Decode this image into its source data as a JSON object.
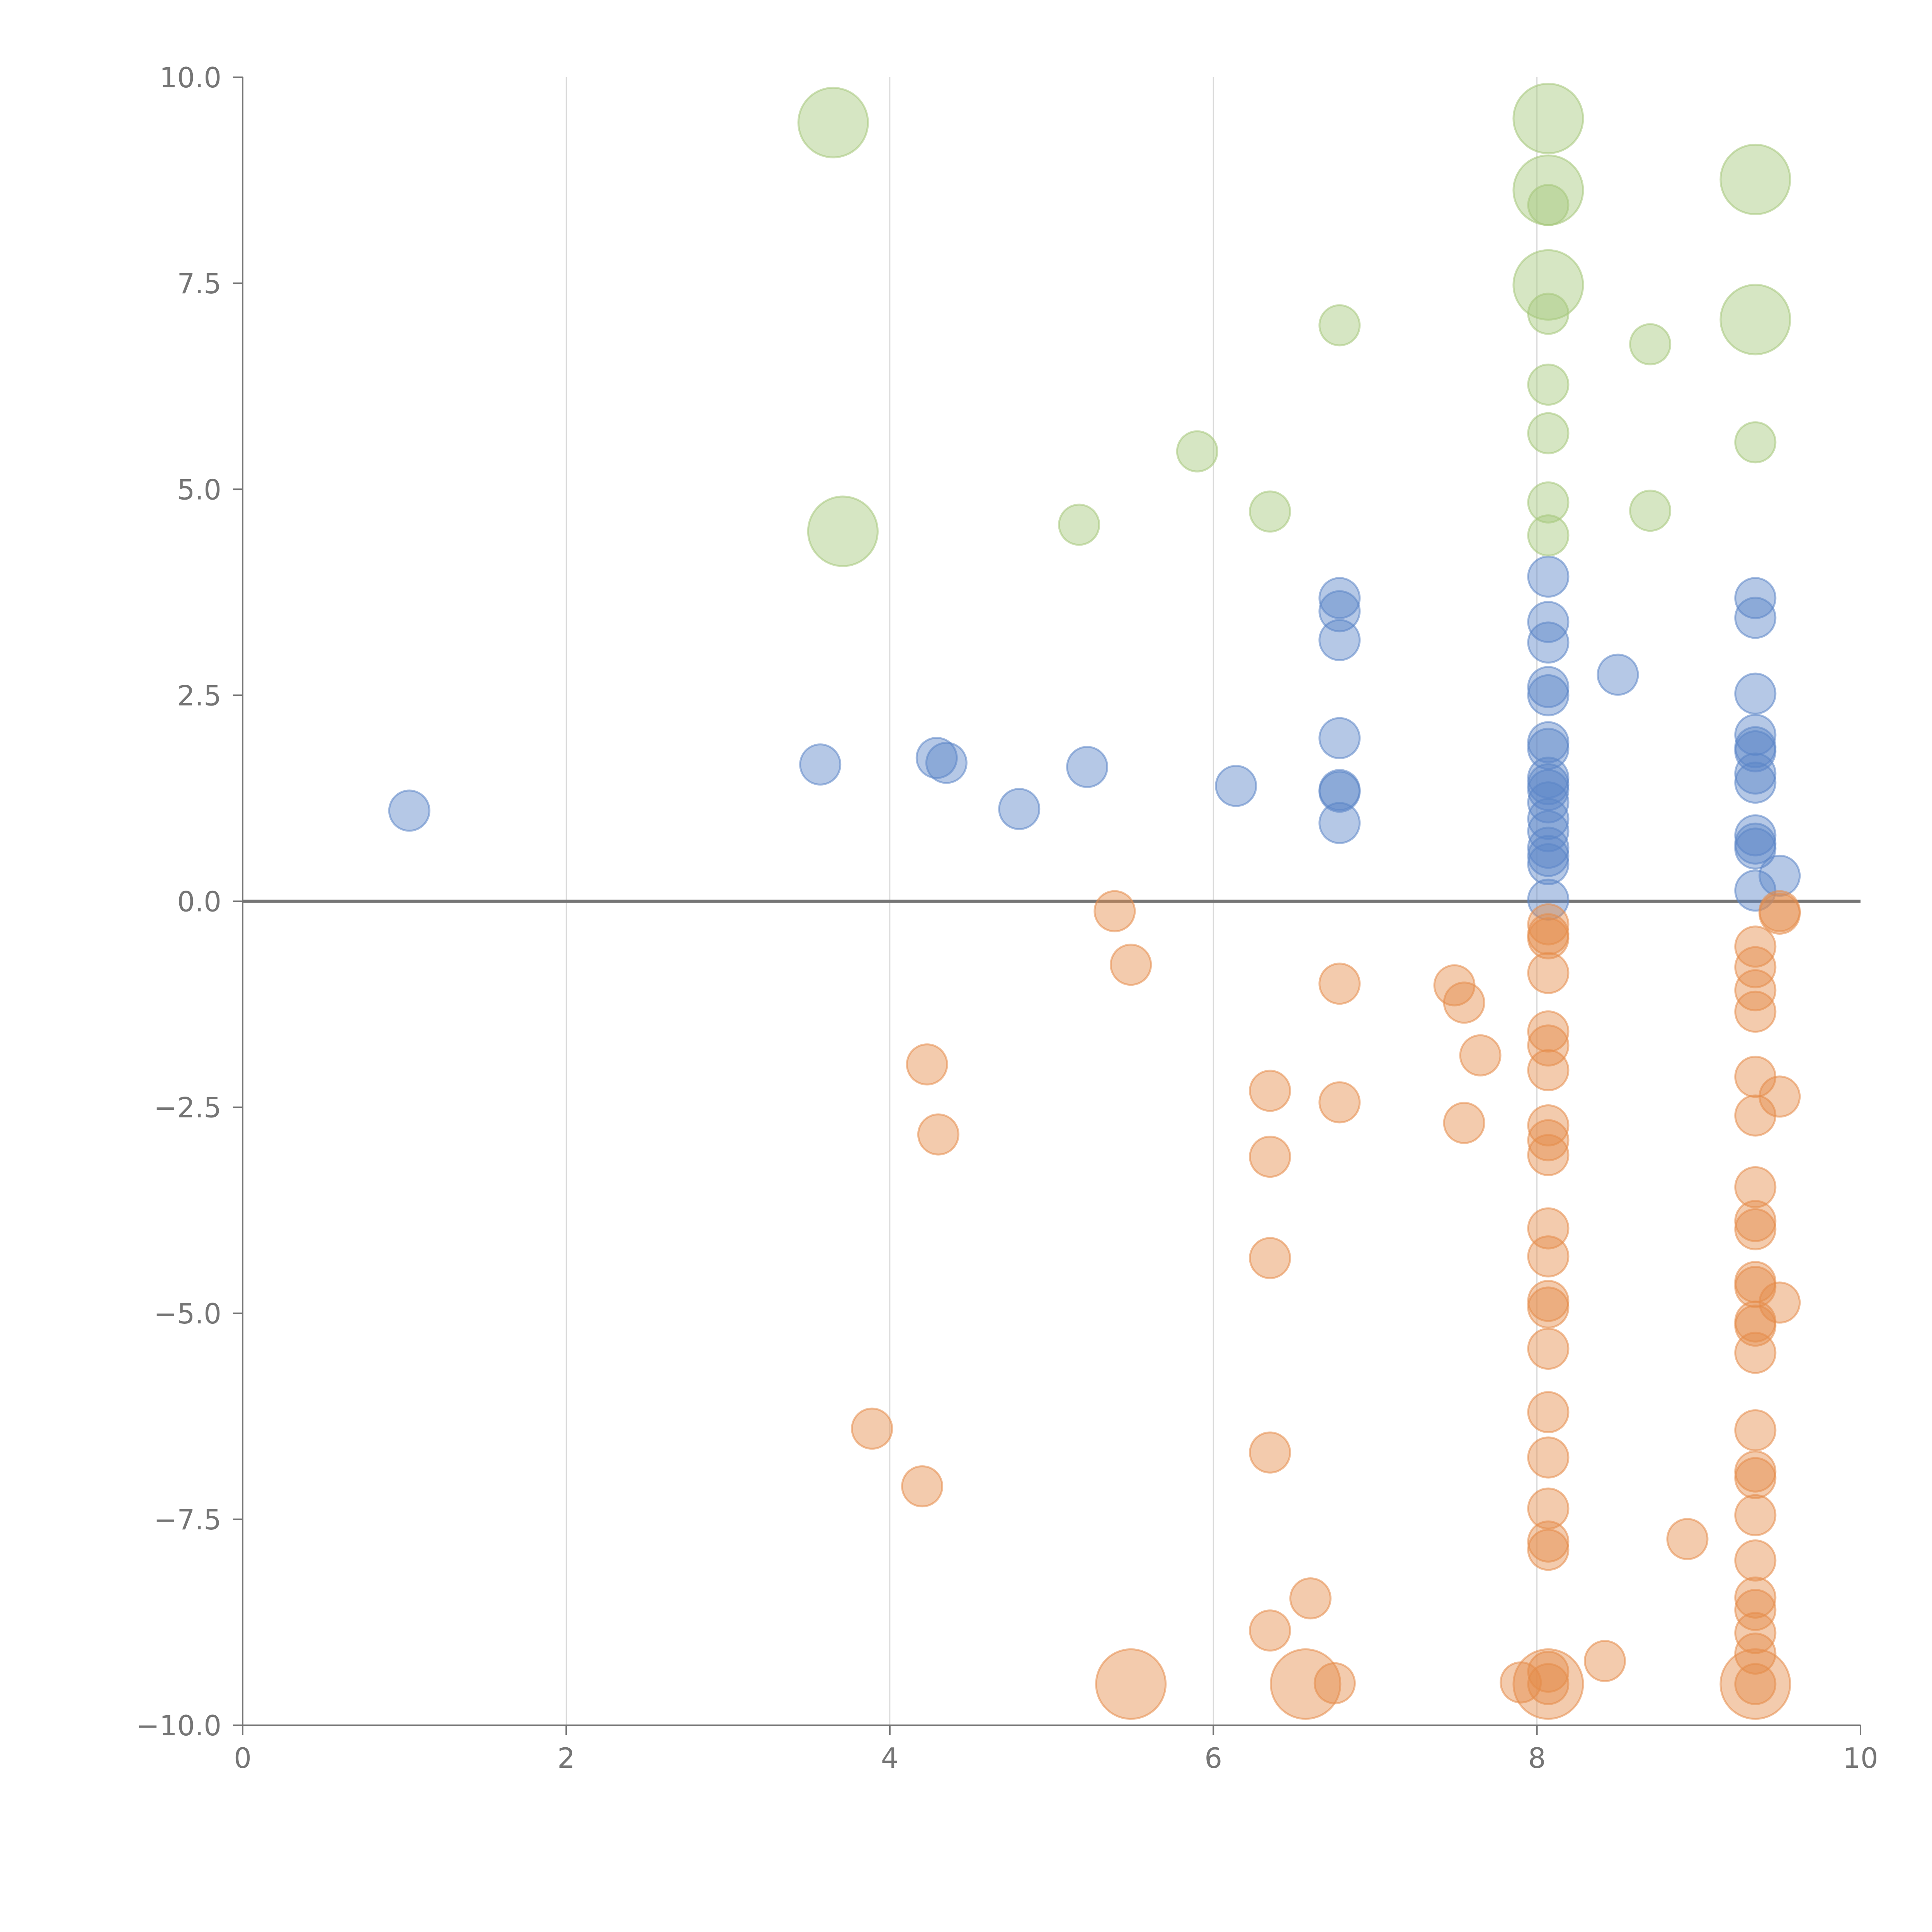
{
  "chart_data": {
    "type": "scatter",
    "title": "",
    "xlabel": "",
    "ylabel": "",
    "xlim": [
      0,
      10
    ],
    "ylim": [
      -10,
      10
    ],
    "x_ticks": [
      "0",
      "2",
      "4",
      "6",
      "8",
      "10"
    ],
    "y_ticks": [
      "10.0",
      "7.5",
      "5.0",
      "2.5",
      "0.0",
      "−2.5",
      "−5.0",
      "−7.5",
      "−10.0"
    ],
    "x_tick_values": [
      0,
      2,
      4,
      6,
      8,
      10
    ],
    "y_tick_values": [
      10,
      7.5,
      5,
      2.5,
      0,
      -2.5,
      -5,
      -7.5,
      -10
    ],
    "vertical_gridlines_at": [
      2,
      4,
      6,
      8
    ],
    "zero_line": true,
    "series": [
      {
        "name": "blue",
        "color": "#5b85c7",
        "points": [
          [
            1.03,
            1.1,
            1
          ],
          [
            3.57,
            1.66,
            1
          ],
          [
            4.29,
            1.74,
            1
          ],
          [
            4.35,
            1.68,
            1
          ],
          [
            4.8,
            1.12,
            1
          ],
          [
            5.22,
            1.63,
            1
          ],
          [
            6.14,
            1.4,
            1
          ],
          [
            6.78,
            3.68,
            1
          ],
          [
            6.78,
            3.52,
            1
          ],
          [
            6.78,
            3.17,
            1
          ],
          [
            6.78,
            1.98,
            1
          ],
          [
            6.78,
            1.35,
            1
          ],
          [
            6.78,
            1.33,
            1
          ],
          [
            6.78,
            0.95,
            1
          ],
          [
            8.07,
            3.94,
            1
          ],
          [
            8.07,
            3.39,
            1
          ],
          [
            8.07,
            3.14,
            1
          ],
          [
            8.07,
            2.6,
            1
          ],
          [
            8.07,
            2.5,
            1
          ],
          [
            8.07,
            1.93,
            1
          ],
          [
            8.07,
            1.85,
            1
          ],
          [
            8.07,
            1.5,
            1
          ],
          [
            8.07,
            1.42,
            1
          ],
          [
            8.07,
            1.35,
            1
          ],
          [
            8.07,
            1.2,
            1
          ],
          [
            8.07,
            1.0,
            1
          ],
          [
            8.07,
            0.85,
            1
          ],
          [
            8.07,
            0.65,
            1
          ],
          [
            8.07,
            0.55,
            1
          ],
          [
            8.07,
            0.45,
            1
          ],
          [
            8.07,
            0.02,
            1
          ],
          [
            8.5,
            2.75,
            1
          ],
          [
            9.35,
            3.68,
            1
          ],
          [
            9.35,
            3.44,
            1
          ],
          [
            9.35,
            2.52,
            1
          ],
          [
            9.35,
            2.02,
            1
          ],
          [
            9.35,
            1.87,
            1
          ],
          [
            9.35,
            1.82,
            1
          ],
          [
            9.35,
            1.55,
            1
          ],
          [
            9.35,
            1.44,
            1
          ],
          [
            9.35,
            0.8,
            1
          ],
          [
            9.35,
            0.7,
            1
          ],
          [
            9.35,
            0.64,
            1
          ],
          [
            9.35,
            0.13,
            1
          ],
          [
            9.5,
            0.31,
            1
          ]
        ]
      },
      {
        "name": "orange",
        "color": "#e58c4a",
        "points": [
          [
            3.89,
            -6.4,
            1
          ],
          [
            4.2,
            -7.1,
            1
          ],
          [
            4.23,
            -1.98,
            1
          ],
          [
            4.3,
            -2.83,
            1
          ],
          [
            5.39,
            -0.12,
            1
          ],
          [
            5.49,
            -0.77,
            1
          ],
          [
            6.35,
            -2.3,
            1
          ],
          [
            6.35,
            -3.1,
            1
          ],
          [
            6.35,
            -4.33,
            1
          ],
          [
            6.35,
            -6.69,
            1
          ],
          [
            6.35,
            -8.85,
            1
          ],
          [
            6.6,
            -8.46,
            1
          ],
          [
            6.78,
            -1.0,
            1
          ],
          [
            6.78,
            -2.44,
            1
          ],
          [
            7.49,
            -1.02,
            1
          ],
          [
            7.55,
            -1.23,
            1
          ],
          [
            7.65,
            -1.87,
            1
          ],
          [
            7.55,
            -2.69,
            1
          ],
          [
            8.07,
            -0.28,
            1
          ],
          [
            8.07,
            -0.4,
            1
          ],
          [
            8.07,
            -0.45,
            1
          ],
          [
            8.07,
            -0.87,
            1
          ],
          [
            8.07,
            -1.58,
            1
          ],
          [
            8.07,
            -1.75,
            1
          ],
          [
            8.07,
            -2.05,
            1
          ],
          [
            8.07,
            -2.72,
            1
          ],
          [
            8.07,
            -2.9,
            1
          ],
          [
            8.07,
            -3.08,
            1
          ],
          [
            8.07,
            -3.97,
            1
          ],
          [
            8.07,
            -4.31,
            1
          ],
          [
            8.07,
            -4.85,
            1
          ],
          [
            8.07,
            -4.93,
            1
          ],
          [
            8.07,
            -5.43,
            1
          ],
          [
            8.07,
            -6.2,
            1
          ],
          [
            8.07,
            -6.75,
            1
          ],
          [
            8.07,
            -7.37,
            1
          ],
          [
            8.07,
            -7.77,
            1
          ],
          [
            8.07,
            -7.87,
            1
          ],
          [
            8.07,
            -9.35,
            1
          ],
          [
            8.07,
            -9.5,
            1
          ],
          [
            7.9,
            -9.48,
            1
          ],
          [
            6.75,
            -9.49,
            1
          ],
          [
            8.42,
            -9.22,
            1
          ],
          [
            8.93,
            -7.74,
            1
          ],
          [
            9.35,
            -0.55,
            1
          ],
          [
            9.35,
            -0.8,
            1
          ],
          [
            9.35,
            -1.08,
            1
          ],
          [
            9.35,
            -1.34,
            1
          ],
          [
            9.35,
            -2.13,
            1
          ],
          [
            9.35,
            -2.6,
            1
          ],
          [
            9.35,
            -3.47,
            1
          ],
          [
            9.35,
            -3.88,
            1
          ],
          [
            9.35,
            -3.98,
            1
          ],
          [
            9.35,
            -4.62,
            1
          ],
          [
            9.35,
            -4.68,
            1
          ],
          [
            9.35,
            -5.1,
            1
          ],
          [
            9.35,
            -5.15,
            1
          ],
          [
            9.35,
            -5.48,
            1
          ],
          [
            9.35,
            -6.42,
            1
          ],
          [
            9.35,
            -6.92,
            1
          ],
          [
            9.35,
            -7.0,
            1
          ],
          [
            9.35,
            -7.45,
            1
          ],
          [
            9.35,
            -8.0,
            1
          ],
          [
            9.35,
            -8.45,
            1
          ],
          [
            9.35,
            -8.6,
            1
          ],
          [
            9.35,
            -8.88,
            1
          ],
          [
            9.35,
            -9.13,
            1
          ],
          [
            9.35,
            -9.5,
            1
          ],
          [
            9.5,
            -0.12,
            1
          ],
          [
            9.5,
            -0.15,
            1
          ],
          [
            9.5,
            -2.37,
            1
          ],
          [
            9.5,
            -4.87,
            1
          ],
          [
            5.49,
            -9.5,
            2
          ],
          [
            6.57,
            -9.5,
            2
          ],
          [
            8.07,
            -9.5,
            2
          ],
          [
            9.35,
            -9.5,
            2
          ]
        ]
      },
      {
        "name": "green",
        "color": "#a5c77a",
        "points": [
          [
            3.65,
            9.45,
            2
          ],
          [
            3.71,
            4.49,
            2
          ],
          [
            5.17,
            4.57,
            1
          ],
          [
            5.9,
            5.46,
            1
          ],
          [
            6.35,
            4.73,
            1
          ],
          [
            6.78,
            6.99,
            1
          ],
          [
            8.07,
            9.5,
            2
          ],
          [
            8.07,
            8.63,
            2
          ],
          [
            8.07,
            8.45,
            1
          ],
          [
            8.07,
            7.48,
            2
          ],
          [
            8.07,
            7.13,
            1
          ],
          [
            8.07,
            6.27,
            1
          ],
          [
            8.07,
            5.68,
            1
          ],
          [
            8.07,
            4.84,
            1
          ],
          [
            8.07,
            4.44,
            1
          ],
          [
            8.7,
            6.76,
            1
          ],
          [
            8.7,
            4.74,
            1
          ],
          [
            9.35,
            8.76,
            2
          ],
          [
            9.35,
            7.06,
            2
          ],
          [
            9.35,
            5.57,
            1
          ]
        ]
      }
    ]
  }
}
